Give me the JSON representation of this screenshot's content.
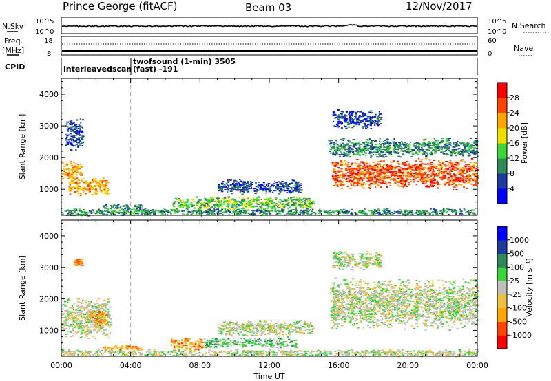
{
  "header": {
    "station": "Prince George (fitACF)",
    "beam": "Beam 03",
    "date": "12/Nov/2017"
  },
  "strip_panels": {
    "nsky_label": "N.Sky",
    "nsky_ticks": [
      "10^5",
      "10^0"
    ],
    "nsearch_label": "N.Search",
    "nsearch_ticks": [
      "10^5",
      "10^0"
    ],
    "freq_label": "Freq.",
    "freq_unit": "[MHz]",
    "freq_ticks": [
      "18",
      "8"
    ],
    "nave_label": "Nave",
    "nave_ticks": [
      "60",
      "0"
    ],
    "cpid_label": "CPID",
    "cpid_segments": [
      {
        "start_hour": 0,
        "end_hour": 4,
        "name": "interleavedscan",
        "extra": ""
      },
      {
        "start_hour": 4,
        "end_hour": 24,
        "name": "twofsound (1-min) 3505",
        "extra": "(fast) -191"
      }
    ]
  },
  "colors": {
    "power": [
      "#0000ff",
      "#1e3c9e",
      "#2e8b57",
      "#39d539",
      "#f0e000",
      "#ffa500",
      "#ff4500",
      "#ff0000"
    ],
    "velocity": [
      "#ff0000",
      "#ff4500",
      "#ffa500",
      "#f0c040",
      "#c0c0b8",
      "#39d539",
      "#2e8b57",
      "#1e3c9e",
      "#0000ff"
    ]
  },
  "chart_data": [
    {
      "type": "heatmap",
      "title": "Power",
      "xlabel": "",
      "ylabel": "Slant Range [km]",
      "xlim": [
        0,
        24
      ],
      "ylim": [
        180,
        4500
      ],
      "yticks": [
        1000,
        2000,
        3000,
        4000
      ],
      "xtick_labels": [
        "00:00",
        "04:00",
        "08:00",
        "12:00",
        "16:00",
        "20:00",
        "00:00"
      ],
      "colorbar": {
        "label": "Power [dB]",
        "ticks": [
          "4",
          "8",
          "12",
          "16",
          "20",
          "24",
          "28"
        ]
      },
      "marker_hour": 4,
      "features": [
        {
          "t0": 0.0,
          "t1": 1.1,
          "r0": 1300,
          "r1": 1950,
          "level": 5
        },
        {
          "t0": 0.4,
          "t1": 2.7,
          "r0": 800,
          "r1": 1400,
          "level": 5
        },
        {
          "t0": 0.2,
          "t1": 1.2,
          "r0": 2200,
          "r1": 3300,
          "level": 1
        },
        {
          "t0": 2.4,
          "t1": 4.6,
          "r0": 380,
          "r1": 550,
          "level": 2
        },
        {
          "t0": 6.4,
          "t1": 14.5,
          "r0": 350,
          "r1": 800,
          "level": 3
        },
        {
          "t0": 9.0,
          "t1": 13.8,
          "r0": 850,
          "r1": 1350,
          "level": 1
        },
        {
          "t0": 15.6,
          "t1": 24.0,
          "r0": 1000,
          "r1": 2000,
          "level": 6
        },
        {
          "t0": 15.4,
          "t1": 24.0,
          "r0": 2000,
          "r1": 2650,
          "level": 2
        },
        {
          "t0": 15.6,
          "t1": 18.4,
          "r0": 2900,
          "r1": 3550,
          "level": 1
        },
        {
          "t0": 0.0,
          "t1": 24.0,
          "r0": 180,
          "r1": 420,
          "level": 2
        }
      ]
    },
    {
      "type": "heatmap",
      "title": "Velocity",
      "xlabel": "Time UT",
      "ylabel": "Slant Range [km]",
      "xlim": [
        0,
        24
      ],
      "ylim": [
        180,
        4500
      ],
      "yticks": [
        1000,
        2000,
        3000,
        4000
      ],
      "xtick_labels": [
        "00:00",
        "04:00",
        "08:00",
        "12:00",
        "16:00",
        "20:00",
        "00:00"
      ],
      "colorbar": {
        "label": "Velocity [m s⁻¹]",
        "ticks": [
          "-1000",
          "-500",
          "-100",
          "-25",
          "25",
          "100",
          "500",
          "1000"
        ]
      },
      "marker_hour": 4,
      "features": [
        {
          "t0": 0.0,
          "t1": 2.8,
          "r0": 700,
          "r1": 2100,
          "level": 4
        },
        {
          "t0": 1.6,
          "t1": 2.6,
          "r0": 1150,
          "r1": 1700,
          "level": 2
        },
        {
          "t0": 0.7,
          "t1": 1.2,
          "r0": 3050,
          "r1": 3300,
          "level": 2
        },
        {
          "t0": 2.4,
          "t1": 4.6,
          "r0": 380,
          "r1": 560,
          "level": 2
        },
        {
          "t0": 6.3,
          "t1": 8.2,
          "r0": 350,
          "r1": 800,
          "level": 2
        },
        {
          "t0": 8.2,
          "t1": 13.5,
          "r0": 450,
          "r1": 800,
          "level": 5
        },
        {
          "t0": 9.0,
          "t1": 14.5,
          "r0": 800,
          "r1": 1350,
          "level": 4
        },
        {
          "t0": 15.5,
          "t1": 24.0,
          "r0": 1000,
          "r1": 2700,
          "level": 4
        },
        {
          "t0": 15.6,
          "t1": 18.4,
          "r0": 2900,
          "r1": 3550,
          "level": 4
        },
        {
          "t0": 0.0,
          "t1": 24.0,
          "r0": 180,
          "r1": 420,
          "level": 4
        }
      ]
    }
  ]
}
